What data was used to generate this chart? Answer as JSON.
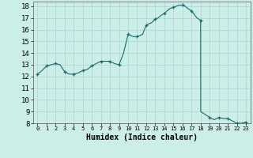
{
  "xlabel": "Humidex (Indice chaleur)",
  "background_color": "#cceee8",
  "grid_color": "#aad4ce",
  "line_color": "#1a6b6b",
  "marker_color": "#1a6b6b",
  "xlim": [
    -0.5,
    23.5
  ],
  "ylim": [
    8,
    18.4
  ],
  "yticks": [
    8,
    9,
    10,
    11,
    12,
    13,
    14,
    15,
    16,
    17,
    18
  ],
  "xticks": [
    0,
    1,
    2,
    3,
    4,
    5,
    6,
    7,
    8,
    9,
    10,
    11,
    12,
    13,
    14,
    15,
    16,
    17,
    18,
    19,
    20,
    21,
    22,
    23
  ],
  "x": [
    0,
    0.5,
    1,
    1.5,
    2,
    2.5,
    3,
    3.5,
    4,
    4.5,
    5,
    5.5,
    6,
    6.5,
    7,
    7.5,
    8,
    8.5,
    9,
    9.5,
    10,
    10.3,
    10.6,
    11,
    11.3,
    11.6,
    12,
    12.3,
    12.6,
    13,
    13.3,
    13.6,
    14,
    14.3,
    14.6,
    15,
    15.3,
    15.6,
    16,
    16.3,
    16.6,
    17,
    17.3,
    17.6,
    18,
    18.01,
    19,
    19.5,
    20,
    20.5,
    21,
    21.5,
    22,
    22.5,
    23
  ],
  "y": [
    12.2,
    12.5,
    12.9,
    13.0,
    13.1,
    13.0,
    12.4,
    12.2,
    12.2,
    12.3,
    12.5,
    12.6,
    12.9,
    13.1,
    13.3,
    13.3,
    13.3,
    13.1,
    13.0,
    14.0,
    15.6,
    15.5,
    15.4,
    15.4,
    15.5,
    15.6,
    16.4,
    16.5,
    16.6,
    16.9,
    17.0,
    17.2,
    17.4,
    17.6,
    17.8,
    17.9,
    18.0,
    18.1,
    18.1,
    18.0,
    17.8,
    17.6,
    17.3,
    17.0,
    16.8,
    9.0,
    8.5,
    8.3,
    8.5,
    8.4,
    8.4,
    8.2,
    8.0,
    8.0,
    8.1
  ],
  "marker_x": [
    0,
    1,
    2,
    3,
    4,
    5,
    6,
    7,
    8,
    9,
    10,
    11,
    12,
    13,
    14,
    15,
    16,
    17,
    18,
    19,
    20,
    21,
    22,
    23
  ],
  "marker_y": [
    12.2,
    12.9,
    13.1,
    12.4,
    12.2,
    12.5,
    12.9,
    13.3,
    13.3,
    13.0,
    15.6,
    15.4,
    16.4,
    16.9,
    17.4,
    17.9,
    18.1,
    17.6,
    16.8,
    8.5,
    8.5,
    8.4,
    8.0,
    8.1
  ],
  "xlabel_fontsize": 7,
  "tick_fontsize": 6.5
}
